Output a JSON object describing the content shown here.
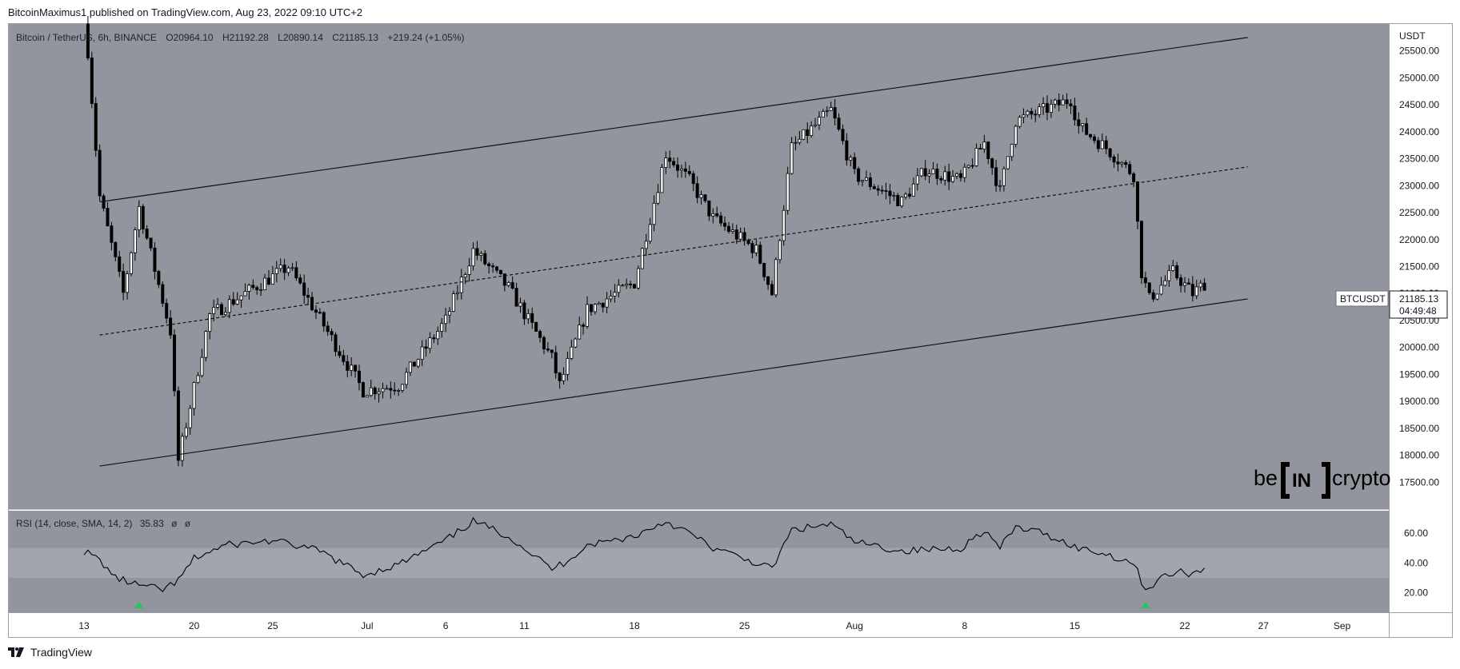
{
  "publish_line": "BitcoinMaximus1 published on TradingView.com, Aug 23, 2022 09:10 UTC+2",
  "footer": {
    "brand": "TradingView"
  },
  "watermark": "beincrypto",
  "price_pane": {
    "symbol": "Bitcoin / TetherUS, 6h, BINANCE",
    "ohlc": [
      {
        "label": "O",
        "value": "20964.10"
      },
      {
        "label": "H",
        "value": "21192.28"
      },
      {
        "label": "L",
        "value": "20890.14"
      },
      {
        "label": "C",
        "value": "21185.13"
      }
    ],
    "change": "+219.24 (+1.05%)",
    "currency": "USDT",
    "badge_symbol": "BTCUSDT",
    "badge_price": "21185.13",
    "badge_timer": "04:49:48"
  },
  "rsi_pane": {
    "label": "RSI (14, close, SMA, 14, 2)",
    "value": "35.83",
    "extra1": "ø",
    "extra2": "ø"
  },
  "colors": {
    "pane_bg": "#92959e",
    "band_bg": "#a2a5ad",
    "candle": "#000000",
    "signal_arrow": "#22c55e",
    "axis_bg": "#ffffff"
  },
  "chart_data": {
    "type": "candlestick",
    "price_ylim": [
      17000,
      26000
    ],
    "price_ticks": [
      "17500.00",
      "18000.00",
      "18500.00",
      "19000.00",
      "19500.00",
      "20000.00",
      "20500.00",
      "21000.00",
      "21500.00",
      "22000.00",
      "22500.00",
      "23000.00",
      "23500.00",
      "24000.00",
      "24500.00",
      "25000.00",
      "25500.00"
    ],
    "x_ticks": [
      "13",
      "20",
      "25",
      "Jul",
      "6",
      "11",
      "18",
      "25",
      "Aug",
      "8",
      "15",
      "22",
      "27",
      "Sep"
    ],
    "x_tick_dates": [
      "2022-06-13",
      "2022-06-20",
      "2022-06-25",
      "2022-07-01",
      "2022-07-06",
      "2022-07-11",
      "2022-07-18",
      "2022-07-25",
      "2022-08-01",
      "2022-08-08",
      "2022-08-15",
      "2022-08-22",
      "2022-08-27",
      "2022-09-01"
    ],
    "x_range": [
      "2022-06-13",
      "2022-09-01"
    ],
    "key_points": [
      {
        "date": "2022-06-13 06:00",
        "close": 25500
      },
      {
        "date": "2022-06-14 00:00",
        "close": 22800
      },
      {
        "date": "2022-06-15 12:00",
        "close": 21000
      },
      {
        "date": "2022-06-16 12:00",
        "close": 22600
      },
      {
        "date": "2022-06-18 12:00",
        "close": 20300
      },
      {
        "date": "2022-06-19 00:00",
        "close": 17900
      },
      {
        "date": "2022-06-21 00:00",
        "close": 20600
      },
      {
        "date": "2022-06-26 00:00",
        "close": 21500
      },
      {
        "date": "2022-06-30 18:00",
        "close": 19200
      },
      {
        "date": "2022-07-03 00:00",
        "close": 19300
      },
      {
        "date": "2022-07-06 00:00",
        "close": 20500
      },
      {
        "date": "2022-07-07 18:00",
        "close": 21800
      },
      {
        "date": "2022-07-10 00:00",
        "close": 21100
      },
      {
        "date": "2022-07-12 18:00",
        "close": 19800
      },
      {
        "date": "2022-07-13 06:00",
        "close": 19300
      },
      {
        "date": "2022-07-15 00:00",
        "close": 20700
      },
      {
        "date": "2022-07-18 00:00",
        "close": 21200
      },
      {
        "date": "2022-07-20 00:00",
        "close": 23600
      },
      {
        "date": "2022-07-21 12:00",
        "close": 23100
      },
      {
        "date": "2022-07-23 00:00",
        "close": 22400
      },
      {
        "date": "2022-07-25 18:00",
        "close": 21800
      },
      {
        "date": "2022-07-26 18:00",
        "close": 21000
      },
      {
        "date": "2022-07-28 00:00",
        "close": 23700
      },
      {
        "date": "2022-07-30 12:00",
        "close": 24400
      },
      {
        "date": "2022-08-01 00:00",
        "close": 23200
      },
      {
        "date": "2022-08-04 00:00",
        "close": 22700
      },
      {
        "date": "2022-08-05 12:00",
        "close": 23300
      },
      {
        "date": "2022-08-07 18:00",
        "close": 23100
      },
      {
        "date": "2022-08-09 06:00",
        "close": 23800
      },
      {
        "date": "2022-08-10 06:00",
        "close": 22900
      },
      {
        "date": "2022-08-11 06:00",
        "close": 24200
      },
      {
        "date": "2022-08-13 00:00",
        "close": 24400
      },
      {
        "date": "2022-08-14 18:00",
        "close": 24600
      },
      {
        "date": "2022-08-15 06:00",
        "close": 24100
      },
      {
        "date": "2022-08-17 00:00",
        "close": 23700
      },
      {
        "date": "2022-08-18 18:00",
        "close": 23200
      },
      {
        "date": "2022-08-19 06:00",
        "close": 21400
      },
      {
        "date": "2022-08-19 18:00",
        "close": 20900
      },
      {
        "date": "2022-08-21 06:00",
        "close": 21400
      },
      {
        "date": "2022-08-22 12:00",
        "close": 21000
      },
      {
        "date": "2022-08-23 06:00",
        "close": 21185.13
      }
    ],
    "channel": {
      "upper": [
        {
          "date": "2022-06-14 00:00",
          "price": 22700
        },
        {
          "date": "2022-08-26 00:00",
          "price": 25750
        }
      ],
      "middle": [
        {
          "date": "2022-06-14 00:00",
          "price": 20230
        },
        {
          "date": "2022-08-26 00:00",
          "price": 23350
        }
      ],
      "lower": [
        {
          "date": "2022-06-14 00:00",
          "price": 17800
        },
        {
          "date": "2022-08-26 00:00",
          "price": 20900
        }
      ]
    },
    "rsi": {
      "ylim": [
        7,
        75
      ],
      "ticks": [
        "20.00",
        "40.00",
        "60.00"
      ],
      "band": [
        30,
        50
      ],
      "key_points": [
        {
          "date": "2022-06-13 00:00",
          "value": 48
        },
        {
          "date": "2022-06-14 00:00",
          "value": 42
        },
        {
          "date": "2022-06-15 00:00",
          "value": 30
        },
        {
          "date": "2022-06-16 12:00",
          "value": 25
        },
        {
          "date": "2022-06-18 00:00",
          "value": 22
        },
        {
          "date": "2022-06-19 00:00",
          "value": 28
        },
        {
          "date": "2022-06-20 00:00",
          "value": 43
        },
        {
          "date": "2022-06-22 00:00",
          "value": 52
        },
        {
          "date": "2022-06-25 00:00",
          "value": 55
        },
        {
          "date": "2022-06-28 00:00",
          "value": 48
        },
        {
          "date": "2022-06-30 18:00",
          "value": 32
        },
        {
          "date": "2022-07-03 00:00",
          "value": 39
        },
        {
          "date": "2022-07-06 00:00",
          "value": 55
        },
        {
          "date": "2022-07-07 18:00",
          "value": 68
        },
        {
          "date": "2022-07-10 00:00",
          "value": 58
        },
        {
          "date": "2022-07-12 18:00",
          "value": 36
        },
        {
          "date": "2022-07-13 12:00",
          "value": 40
        },
        {
          "date": "2022-07-15 00:00",
          "value": 52
        },
        {
          "date": "2022-07-18 00:00",
          "value": 58
        },
        {
          "date": "2022-07-20 00:00",
          "value": 68
        },
        {
          "date": "2022-07-21 12:00",
          "value": 60
        },
        {
          "date": "2022-07-23 00:00",
          "value": 50
        },
        {
          "date": "2022-07-25 18:00",
          "value": 40
        },
        {
          "date": "2022-07-26 18:00",
          "value": 36
        },
        {
          "date": "2022-07-28 00:00",
          "value": 62
        },
        {
          "date": "2022-07-30 12:00",
          "value": 66
        },
        {
          "date": "2022-08-01 00:00",
          "value": 54
        },
        {
          "date": "2022-08-04 00:00",
          "value": 48
        },
        {
          "date": "2022-08-07 18:00",
          "value": 50
        },
        {
          "date": "2022-08-09 06:00",
          "value": 62
        },
        {
          "date": "2022-08-10 06:00",
          "value": 50
        },
        {
          "date": "2022-08-11 06:00",
          "value": 64
        },
        {
          "date": "2022-08-13 00:00",
          "value": 60
        },
        {
          "date": "2022-08-15 06:00",
          "value": 50
        },
        {
          "date": "2022-08-17 00:00",
          "value": 46
        },
        {
          "date": "2022-08-18 18:00",
          "value": 40
        },
        {
          "date": "2022-08-19 12:00",
          "value": 22
        },
        {
          "date": "2022-08-20 12:00",
          "value": 30
        },
        {
          "date": "2022-08-21 12:00",
          "value": 34
        },
        {
          "date": "2022-08-22 12:00",
          "value": 33
        },
        {
          "date": "2022-08-23 06:00",
          "value": 35.83
        }
      ],
      "bullish_divergence_markers": [
        "2022-06-16 12:00",
        "2022-08-19 12:00"
      ]
    }
  }
}
